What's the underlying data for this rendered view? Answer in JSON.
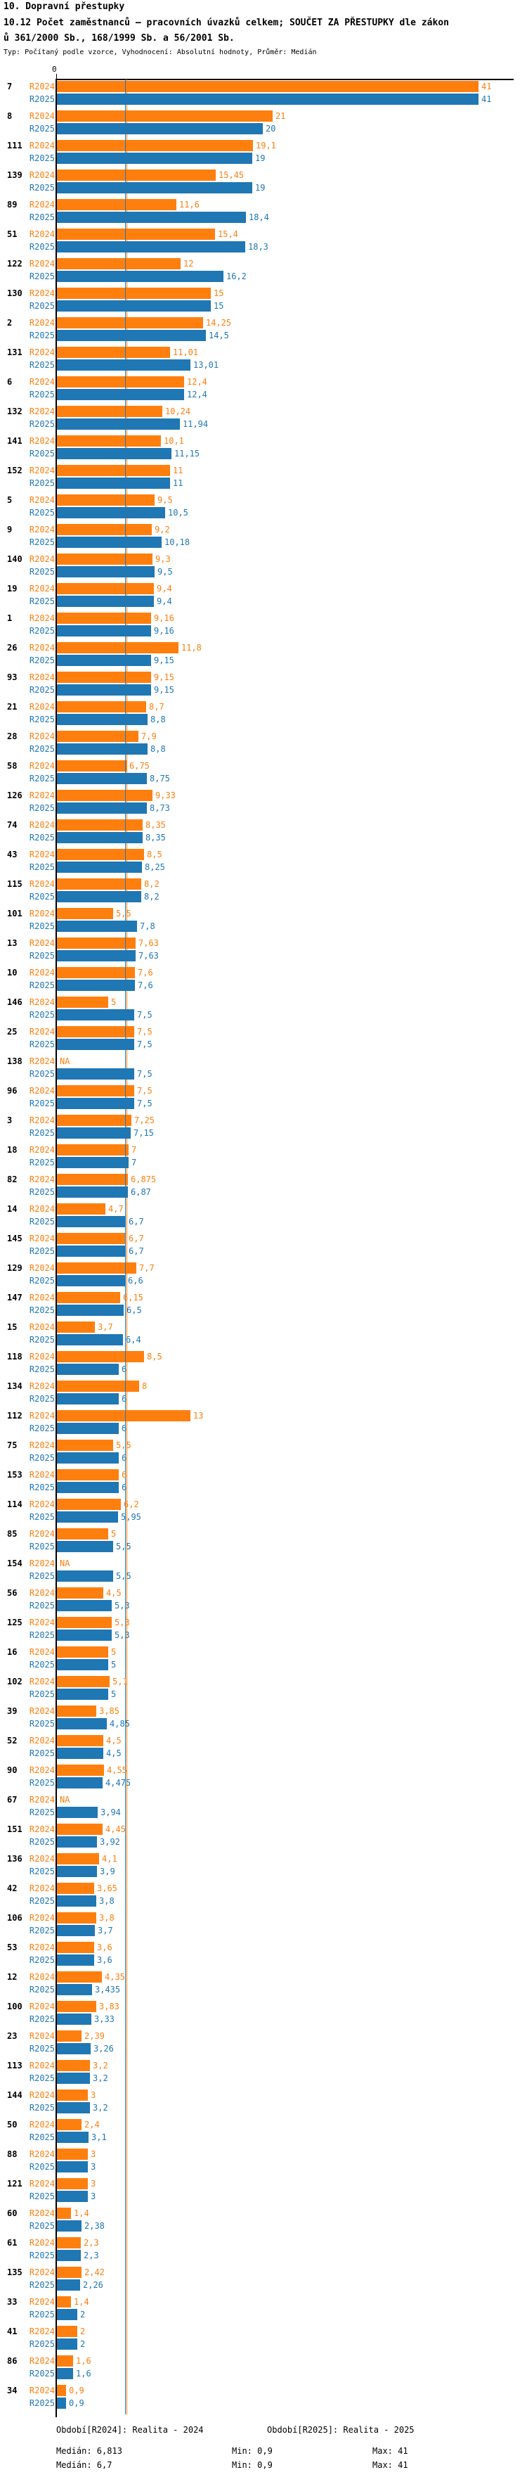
{
  "header": {
    "line1": "10. Dopravní přestupky",
    "line2": "10.12 Počet zaměstnanců – pracovních úvazků celkem; SOUČET ZA PŘESTUPKY dle zákon",
    "line3": "ů 361/2000 Sb., 168/1999 Sb. a 56/2001 Sb.",
    "subtitle": "Typ: Počítaný podle vzorce, Vyhodnocení: Absolutní hodnoty, Průměr: Medián"
  },
  "chart_data": {
    "type": "bar",
    "orientation": "horizontal",
    "grid": "median-lines-only",
    "x_axis": {
      "zero_label": "0",
      "min": 0,
      "max": 41
    },
    "series": [
      {
        "name": "R2024",
        "color": "#ff7f0e",
        "legend": "Období[R2024]: Realita - 2024",
        "median_value": 6.813,
        "median_text": "Medián: 6,813",
        "min_text": "Min: 0,9",
        "max_text": "Max: 41"
      },
      {
        "name": "R2025",
        "color": "#1f77b4",
        "legend": "Období[R2025]: Realita - 2025",
        "median_value": 6.7,
        "median_text": "Medián: 6,7",
        "min_text": "Min: 0,9",
        "max_text": "Max: 41"
      }
    ],
    "na_text": "NA",
    "groups": [
      {
        "id": "7",
        "r2024": "41",
        "r2025": "41"
      },
      {
        "id": "8",
        "r2024": "21",
        "r2025": "20"
      },
      {
        "id": "111",
        "r2024": "19,1",
        "r2025": "19"
      },
      {
        "id": "139",
        "r2024": "15,45",
        "r2025": "19"
      },
      {
        "id": "89",
        "r2024": "11,6",
        "r2025": "18,4"
      },
      {
        "id": "51",
        "r2024": "15,4",
        "r2025": "18,3"
      },
      {
        "id": "122",
        "r2024": "12",
        "r2025": "16,2"
      },
      {
        "id": "130",
        "r2024": "15",
        "r2025": "15"
      },
      {
        "id": "2",
        "r2024": "14,25",
        "r2025": "14,5"
      },
      {
        "id": "131",
        "r2024": "11,01",
        "r2025": "13,01"
      },
      {
        "id": "6",
        "r2024": "12,4",
        "r2025": "12,4"
      },
      {
        "id": "132",
        "r2024": "10,24",
        "r2025": "11,94"
      },
      {
        "id": "141",
        "r2024": "10,1",
        "r2025": "11,15"
      },
      {
        "id": "152",
        "r2024": "11",
        "r2025": "11"
      },
      {
        "id": "5",
        "r2024": "9,5",
        "r2025": "10,5"
      },
      {
        "id": "9",
        "r2024": "9,2",
        "r2025": "10,18"
      },
      {
        "id": "140",
        "r2024": "9,3",
        "r2025": "9,5"
      },
      {
        "id": "19",
        "r2024": "9,4",
        "r2025": "9,4"
      },
      {
        "id": "1",
        "r2024": "9,16",
        "r2025": "9,16"
      },
      {
        "id": "26",
        "r2024": "11,8",
        "r2025": "9,15"
      },
      {
        "id": "93",
        "r2024": "9,15",
        "r2025": "9,15"
      },
      {
        "id": "21",
        "r2024": "8,7",
        "r2025": "8,8"
      },
      {
        "id": "28",
        "r2024": "7,9",
        "r2025": "8,8"
      },
      {
        "id": "58",
        "r2024": "6,75",
        "r2025": "8,75"
      },
      {
        "id": "126",
        "r2024": "9,33",
        "r2025": "8,73"
      },
      {
        "id": "74",
        "r2024": "8,35",
        "r2025": "8,35"
      },
      {
        "id": "43",
        "r2024": "8,5",
        "r2025": "8,25"
      },
      {
        "id": "115",
        "r2024": "8,2",
        "r2025": "8,2"
      },
      {
        "id": "101",
        "r2024": "5,5",
        "r2025": "7,8"
      },
      {
        "id": "13",
        "r2024": "7,63",
        "r2025": "7,63"
      },
      {
        "id": "10",
        "r2024": "7,6",
        "r2025": "7,6"
      },
      {
        "id": "146",
        "r2024": "5",
        "r2025": "7,5"
      },
      {
        "id": "25",
        "r2024": "7,5",
        "r2025": "7,5"
      },
      {
        "id": "138",
        "r2024": "NA",
        "r2025": "7,5"
      },
      {
        "id": "96",
        "r2024": "7,5",
        "r2025": "7,5"
      },
      {
        "id": "3",
        "r2024": "7,25",
        "r2025": "7,15"
      },
      {
        "id": "18",
        "r2024": "7",
        "r2025": "7"
      },
      {
        "id": "82",
        "r2024": "6,875",
        "r2025": "6,87"
      },
      {
        "id": "14",
        "r2024": "4,7",
        "r2025": "6,7"
      },
      {
        "id": "145",
        "r2024": "6,7",
        "r2025": "6,7"
      },
      {
        "id": "129",
        "r2024": "7,7",
        "r2025": "6,6"
      },
      {
        "id": "147",
        "r2024": "6,15",
        "r2025": "6,5"
      },
      {
        "id": "15",
        "r2024": "3,7",
        "r2025": "6,4"
      },
      {
        "id": "118",
        "r2024": "8,5",
        "r2025": "6"
      },
      {
        "id": "134",
        "r2024": "8",
        "r2025": "6"
      },
      {
        "id": "112",
        "r2024": "13",
        "r2025": "6"
      },
      {
        "id": "75",
        "r2024": "5,5",
        "r2025": "6"
      },
      {
        "id": "153",
        "r2024": "6",
        "r2025": "6"
      },
      {
        "id": "114",
        "r2024": "6,2",
        "r2025": "5,95"
      },
      {
        "id": "85",
        "r2024": "5",
        "r2025": "5,5"
      },
      {
        "id": "154",
        "r2024": "NA",
        "r2025": "5,5"
      },
      {
        "id": "56",
        "r2024": "4,5",
        "r2025": "5,3"
      },
      {
        "id": "125",
        "r2024": "5,3",
        "r2025": "5,3"
      },
      {
        "id": "16",
        "r2024": "5",
        "r2025": "5"
      },
      {
        "id": "102",
        "r2024": "5,1",
        "r2025": "5"
      },
      {
        "id": "39",
        "r2024": "3,85",
        "r2025": "4,85"
      },
      {
        "id": "52",
        "r2024": "4,5",
        "r2025": "4,5"
      },
      {
        "id": "90",
        "r2024": "4,55",
        "r2025": "4,475"
      },
      {
        "id": "67",
        "r2024": "NA",
        "r2025": "3,94"
      },
      {
        "id": "151",
        "r2024": "4,45",
        "r2025": "3,92"
      },
      {
        "id": "136",
        "r2024": "4,1",
        "r2025": "3,9"
      },
      {
        "id": "42",
        "r2024": "3,65",
        "r2025": "3,8"
      },
      {
        "id": "106",
        "r2024": "3,8",
        "r2025": "3,7"
      },
      {
        "id": "53",
        "r2024": "3,6",
        "r2025": "3,6"
      },
      {
        "id": "12",
        "r2024": "4,35",
        "r2025": "3,435"
      },
      {
        "id": "100",
        "r2024": "3,83",
        "r2025": "3,33"
      },
      {
        "id": "23",
        "r2024": "2,39",
        "r2025": "3,26"
      },
      {
        "id": "113",
        "r2024": "3,2",
        "r2025": "3,2"
      },
      {
        "id": "144",
        "r2024": "3",
        "r2025": "3,2"
      },
      {
        "id": "50",
        "r2024": "2,4",
        "r2025": "3,1"
      },
      {
        "id": "88",
        "r2024": "3",
        "r2025": "3"
      },
      {
        "id": "121",
        "r2024": "3",
        "r2025": "3"
      },
      {
        "id": "60",
        "r2024": "1,4",
        "r2025": "2,38"
      },
      {
        "id": "61",
        "r2024": "2,3",
        "r2025": "2,3"
      },
      {
        "id": "135",
        "r2024": "2,42",
        "r2025": "2,26"
      },
      {
        "id": "33",
        "r2024": "1,4",
        "r2025": "2"
      },
      {
        "id": "41",
        "r2024": "2",
        "r2025": "2"
      },
      {
        "id": "86",
        "r2024": "1,6",
        "r2025": "1,6"
      },
      {
        "id": "34",
        "r2024": "0,9",
        "r2025": "0,9"
      }
    ]
  }
}
